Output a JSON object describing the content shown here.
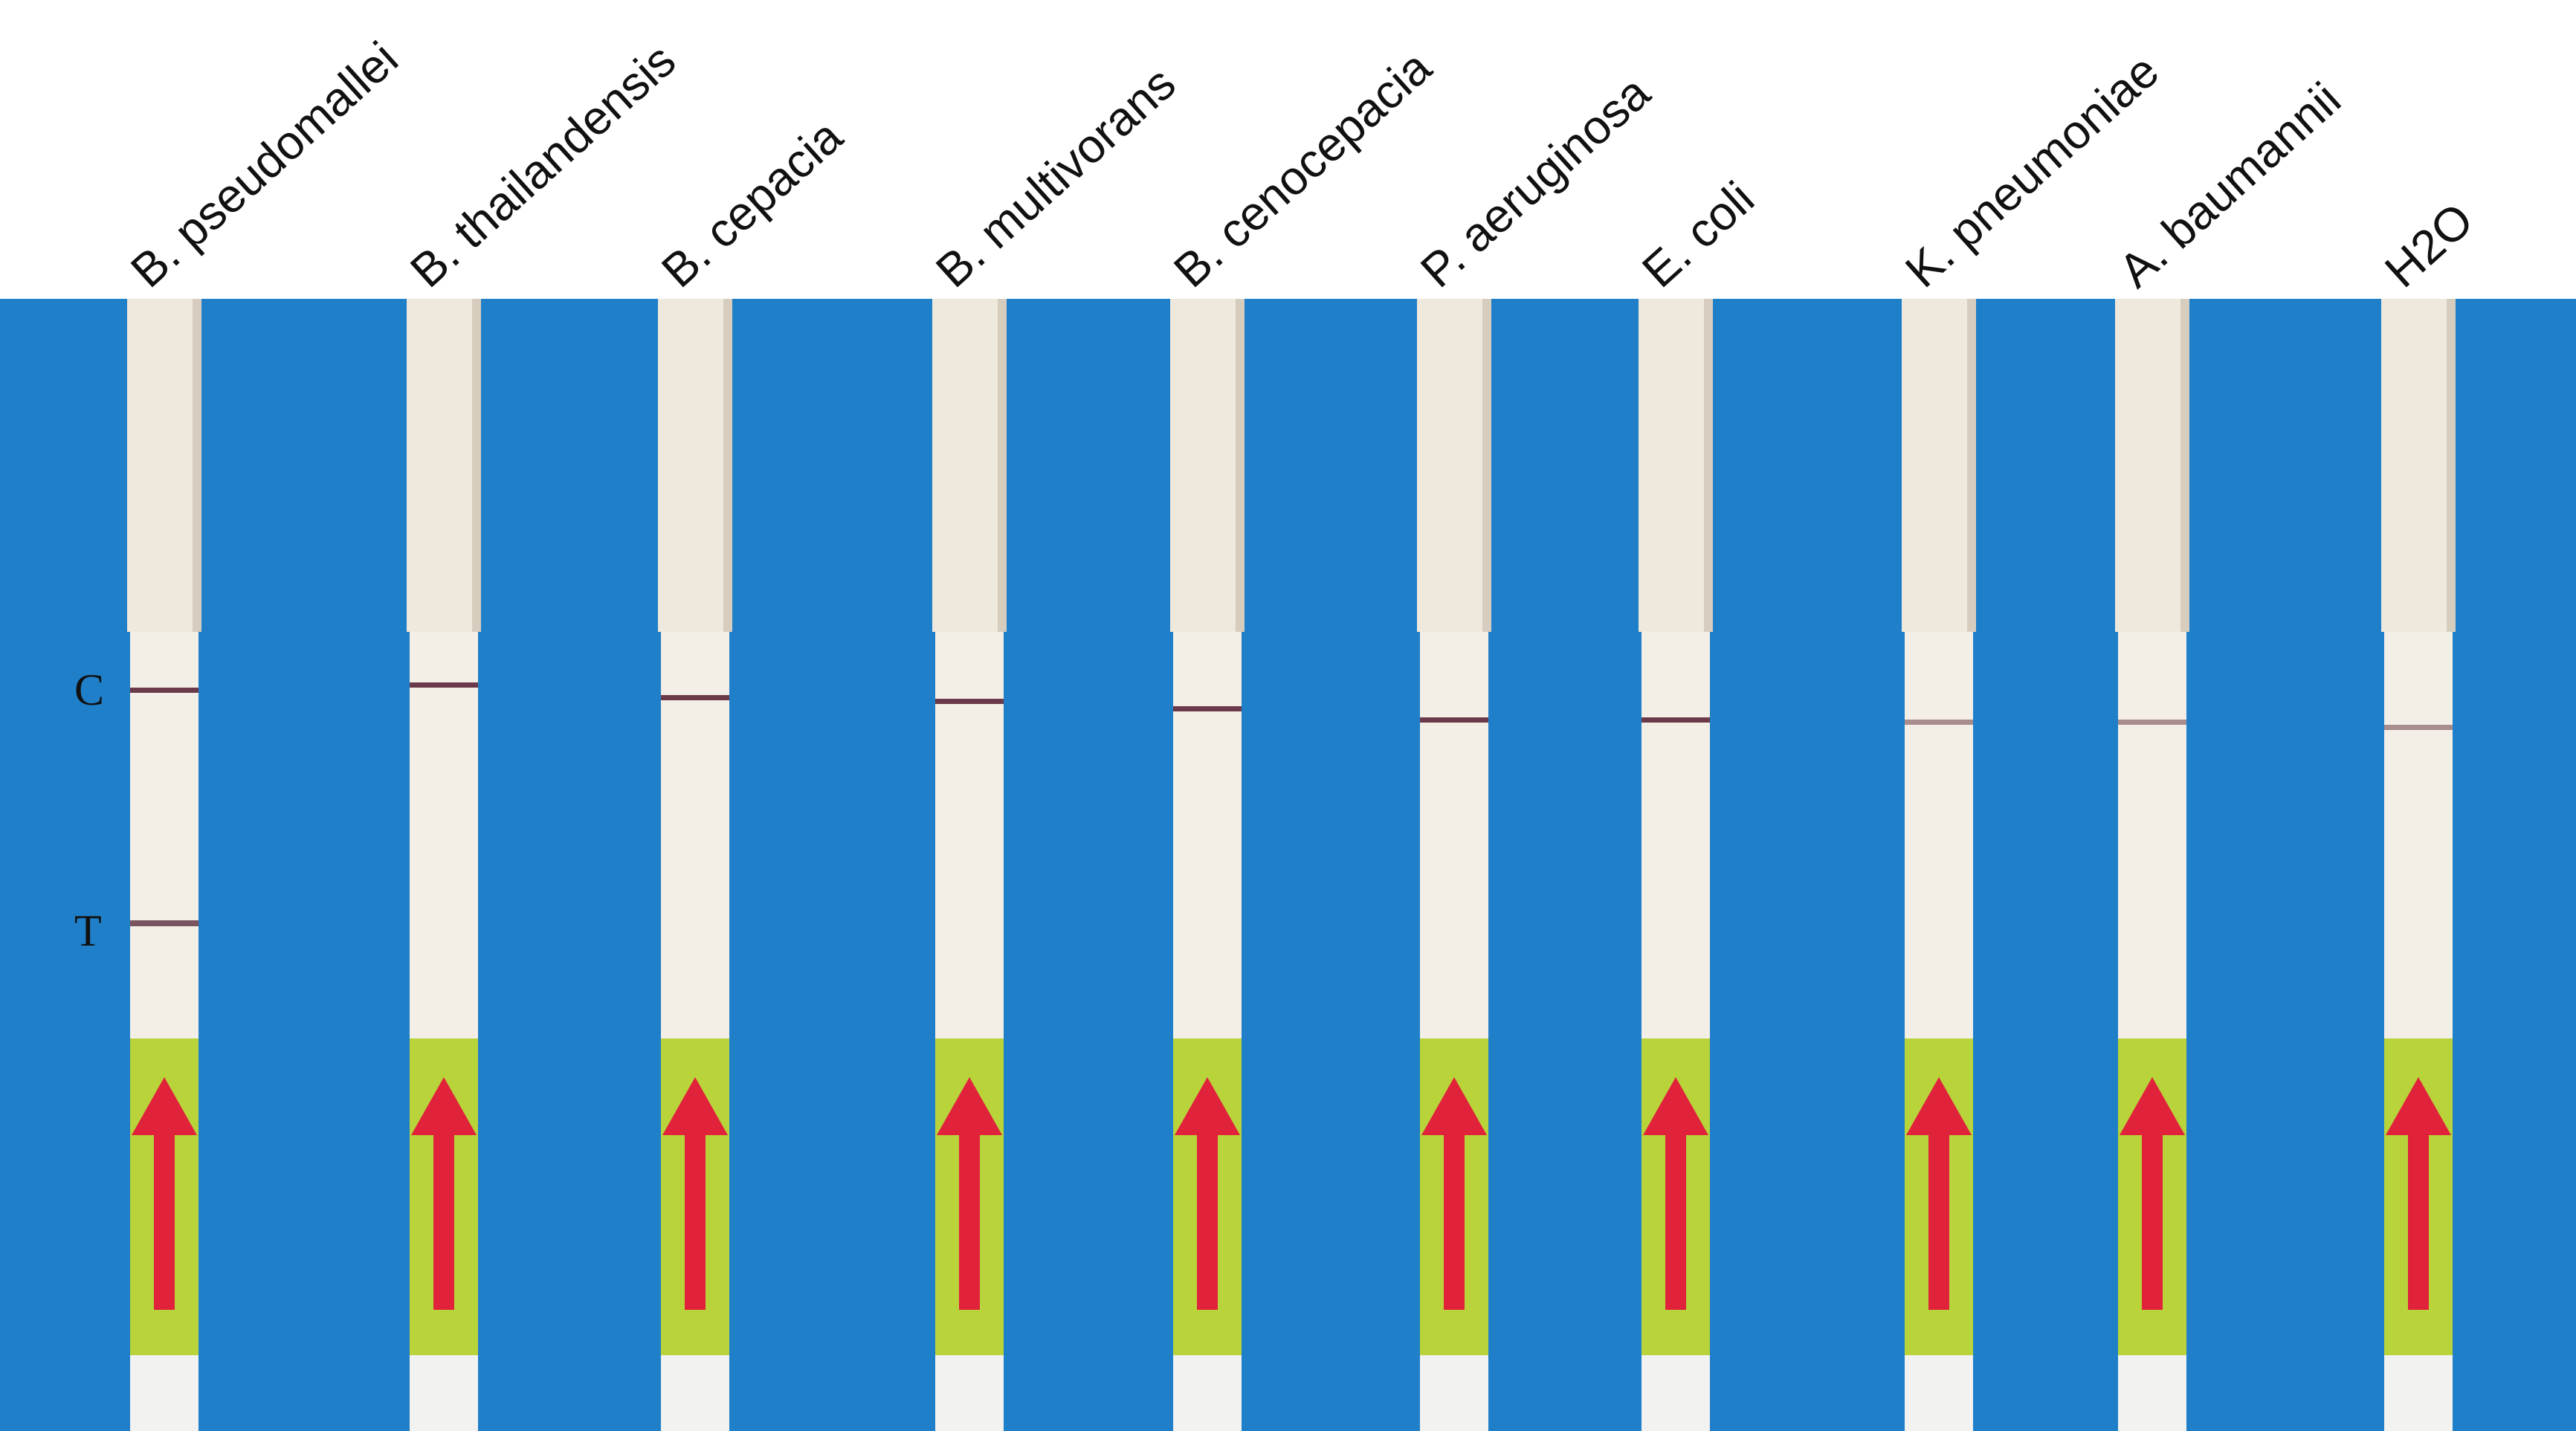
{
  "labels": [
    "B. pseudomallei",
    "B. thailandensis",
    "B. cepacia",
    "B. multivorans",
    "B. cenocepacia",
    "P. aeruginosa",
    "E. coli",
    "K. pneumoniae",
    "A. baumannii",
    "H2O"
  ],
  "markers": {
    "control": "C",
    "test": "T"
  }
}
